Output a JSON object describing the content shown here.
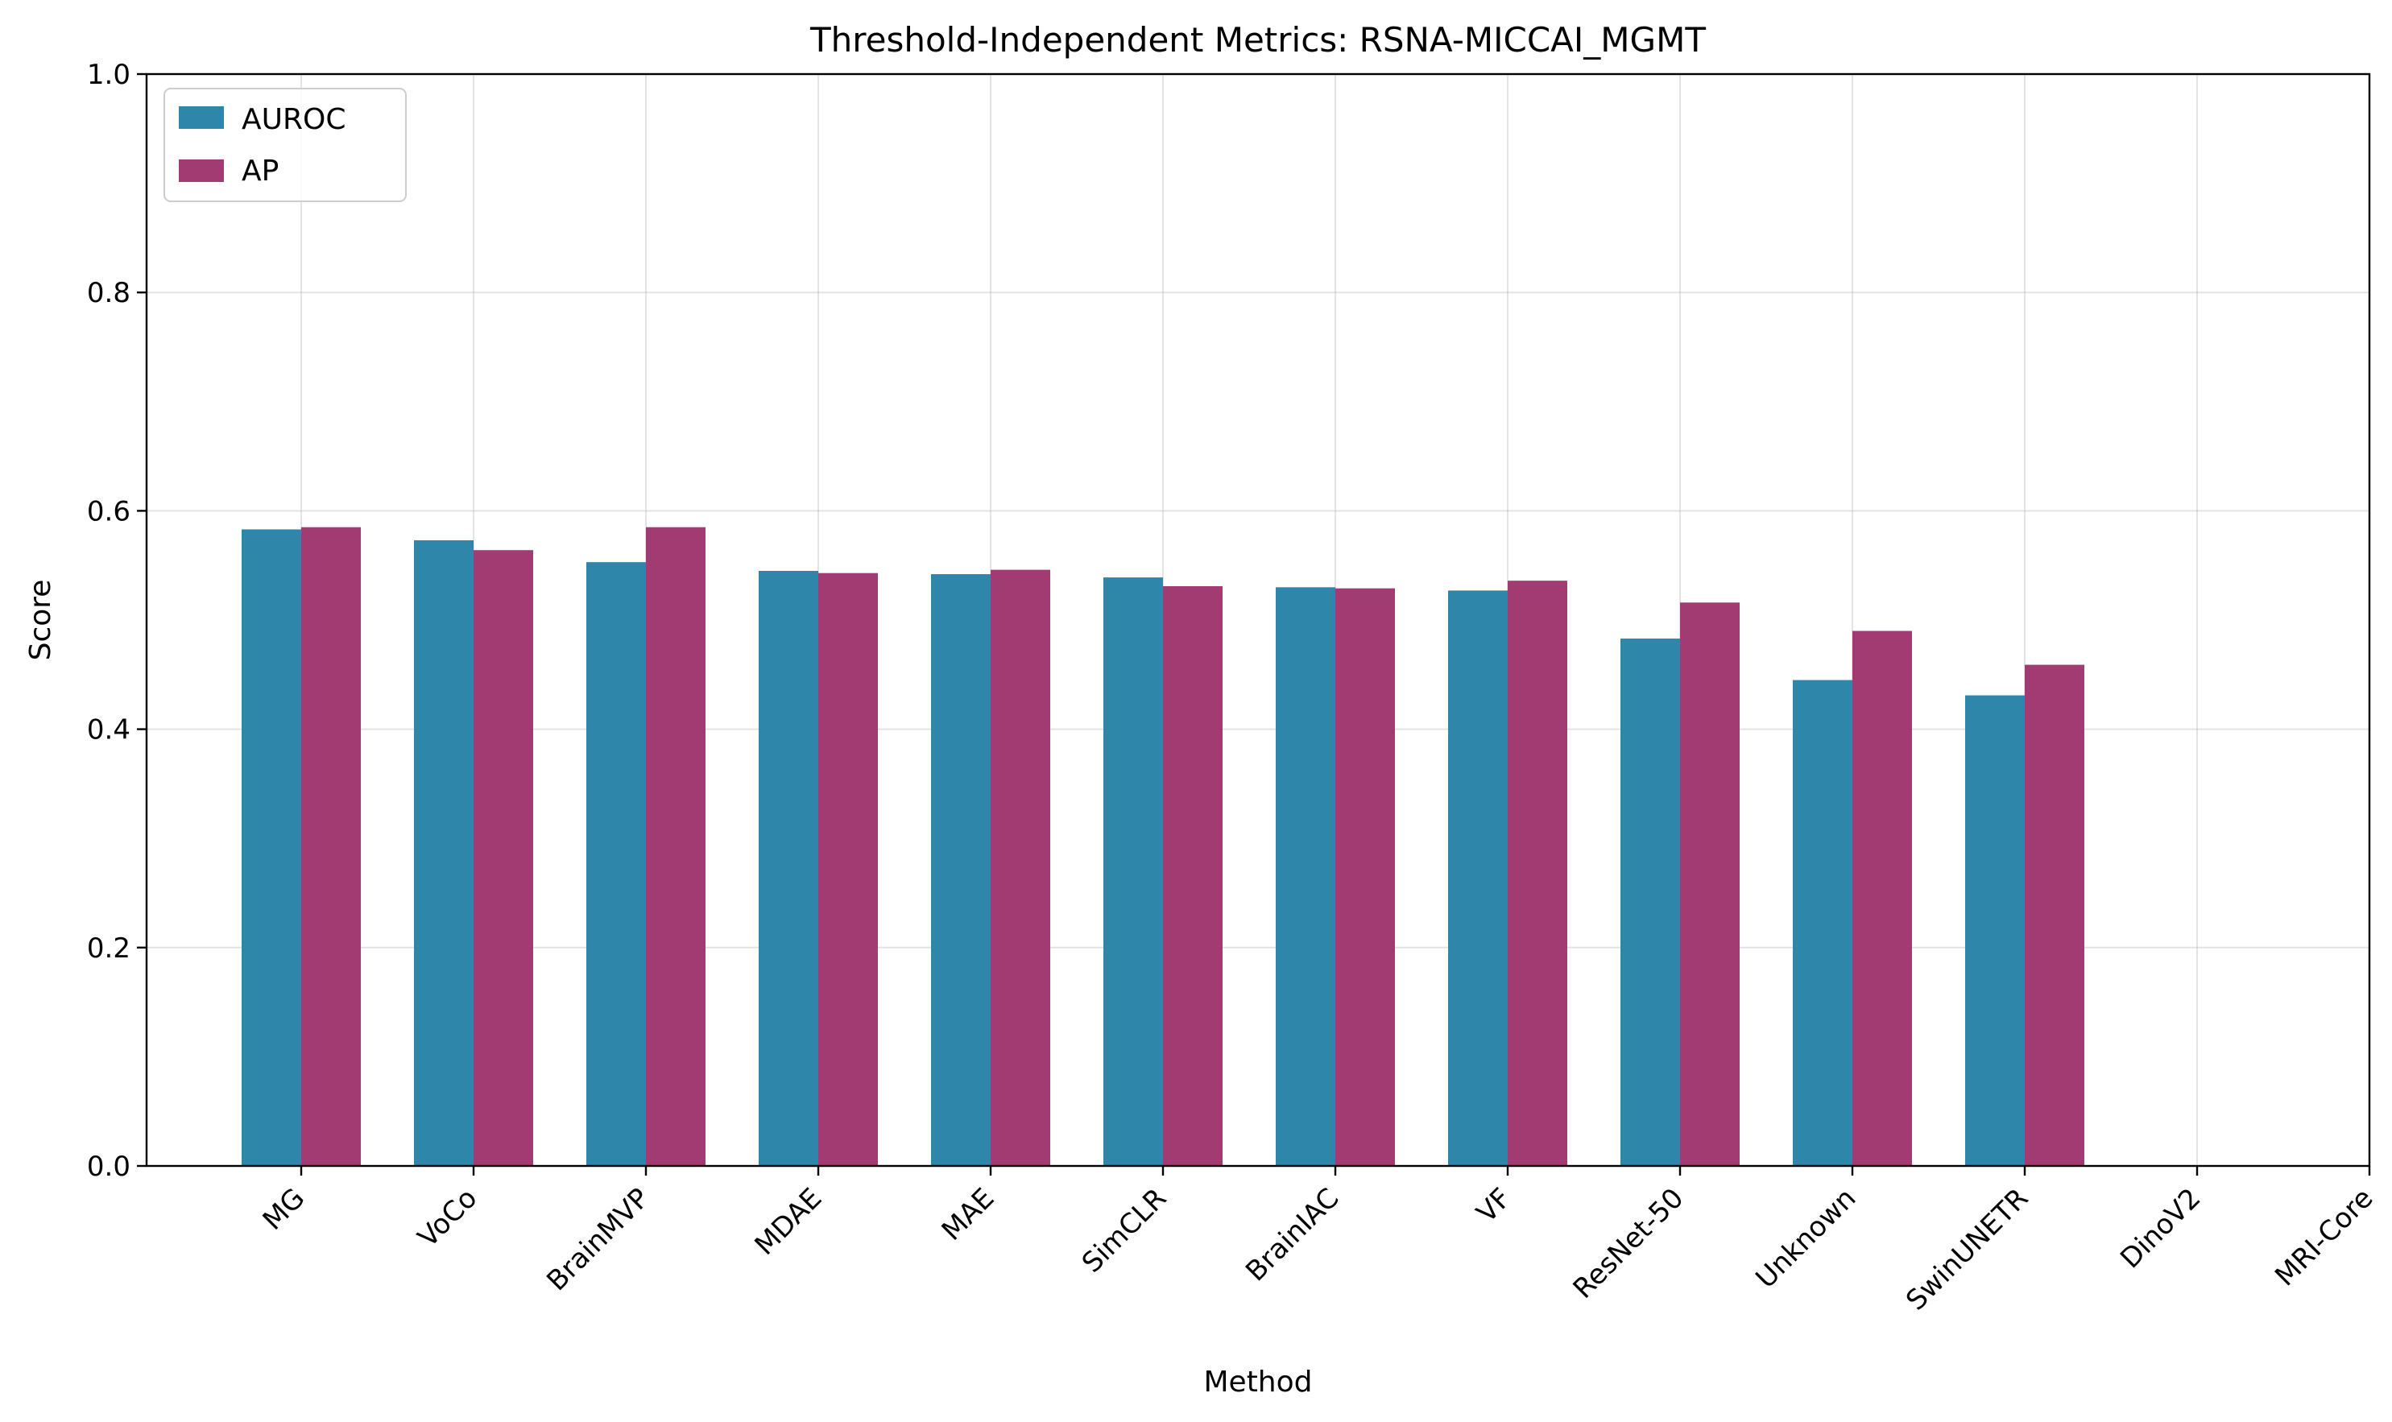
{
  "chart_data": {
    "type": "bar",
    "title": "Threshold-Independent Metrics: RSNA-MICCAI_MGMT",
    "xlabel": "Method",
    "ylabel": "Score",
    "ylim": [
      0,
      1.0
    ],
    "yticks": [
      "0.0",
      "0.2",
      "0.4",
      "0.6",
      "0.8",
      "1.0"
    ],
    "grid": true,
    "legend_position": "top-left",
    "categories": [
      "MG",
      "VoCo",
      "BrainMVP",
      "MDAE",
      "MAE",
      "SimCLR",
      "BrainIAC",
      "VF",
      "ResNet-50",
      "Unknown",
      "SwinUNETR",
      "DinoV2",
      "MRI-Core"
    ],
    "series": [
      {
        "name": "AUROC",
        "color": "#2e86ab",
        "values": [
          0.583,
          0.573,
          0.553,
          0.545,
          0.542,
          0.539,
          0.53,
          0.527,
          0.483,
          0.445,
          0.431,
          null,
          null
        ]
      },
      {
        "name": "AP",
        "color": "#a23b72",
        "values": [
          0.585,
          0.564,
          0.585,
          0.543,
          0.546,
          0.531,
          0.529,
          0.536,
          0.516,
          0.49,
          0.459,
          null,
          null
        ]
      }
    ]
  }
}
